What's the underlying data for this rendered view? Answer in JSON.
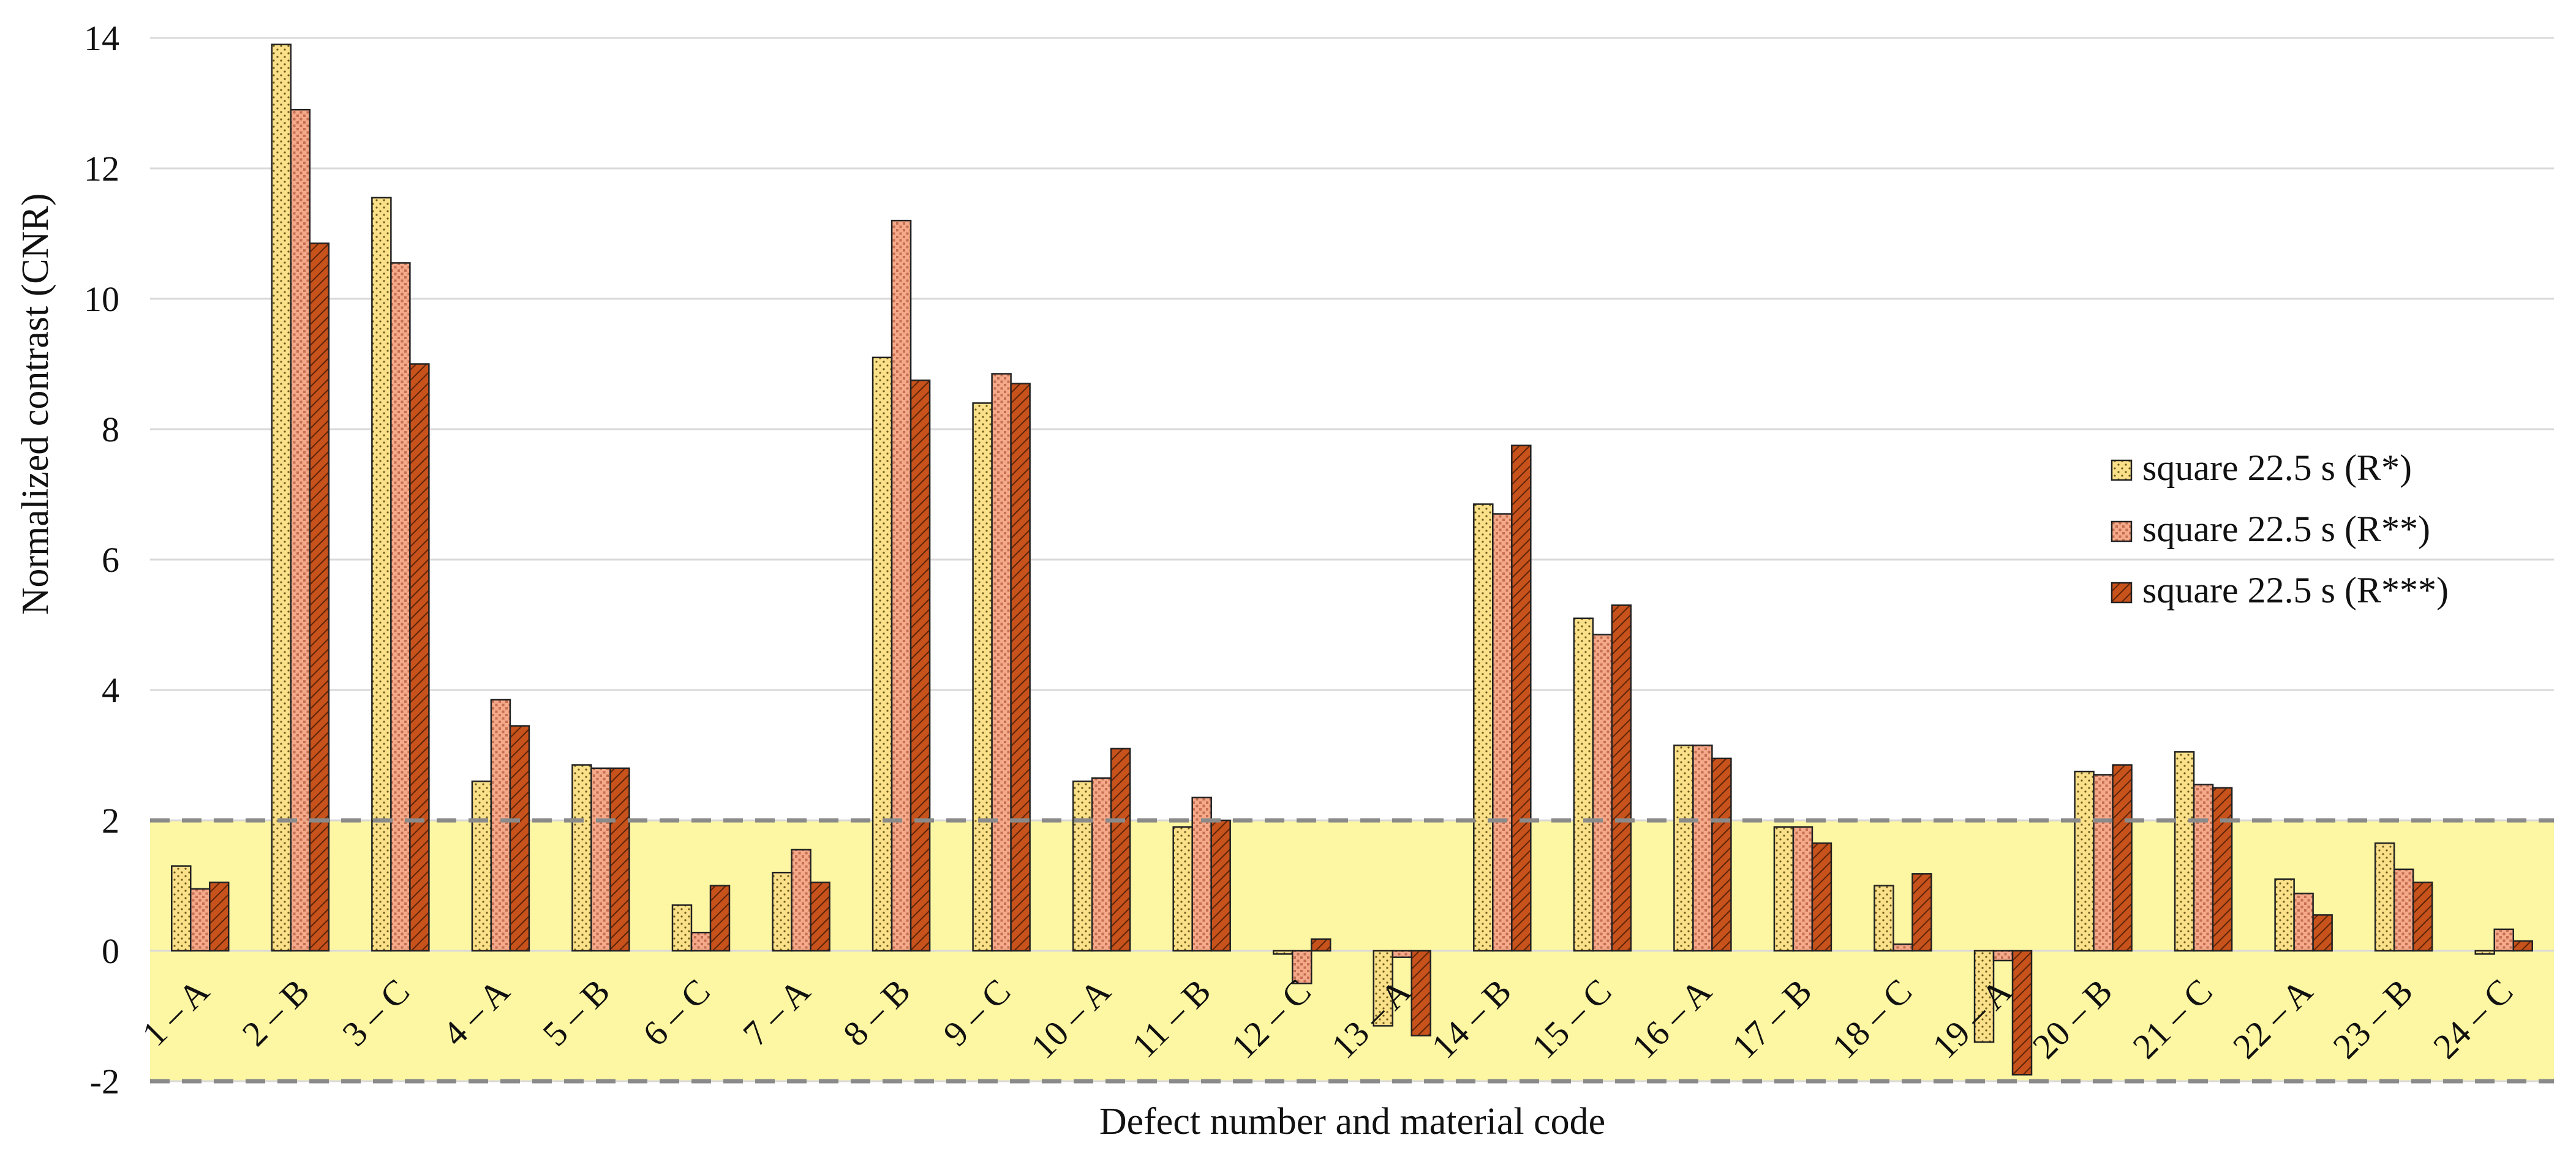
{
  "chart_data": {
    "type": "bar",
    "xlabel": "Defect number and material code",
    "ylabel": "Normalized contrast (CNR)",
    "ylim": [
      -2,
      14
    ],
    "yticks": [
      "-2",
      "0",
      "2",
      "4",
      "6",
      "8",
      "10",
      "12",
      "14"
    ],
    "grid": true,
    "legend_position": "right",
    "categories": [
      "1 – A",
      "2 – B",
      "3 – C",
      "4 – A",
      "5 – B",
      "6 – C",
      "7 – A",
      "8 – B",
      "9 – C",
      "10 – A",
      "11 – B",
      "12 – C",
      "13 – A",
      "14 – B",
      "15 – C",
      "16 – A",
      "17 – B",
      "18 – C",
      "19 – A",
      "20 – B",
      "21 – C",
      "22 – A",
      "23 – B",
      "24 – C"
    ],
    "series": [
      {
        "name": "square 22.5 s (R*)",
        "color": "#fbe08a",
        "pattern": "dots",
        "values": [
          1.3,
          13.9,
          11.55,
          2.6,
          2.85,
          0.7,
          1.2,
          9.1,
          8.4,
          2.6,
          1.9,
          -0.05,
          -1.15,
          6.85,
          5.1,
          3.15,
          1.9,
          1.0,
          -1.4,
          2.75,
          3.05,
          1.1,
          1.65,
          -0.05
        ]
      },
      {
        "name": "square 22.5 s (R**)",
        "color": "#f4a98a",
        "pattern": "grid",
        "values": [
          0.95,
          12.9,
          10.55,
          3.85,
          2.8,
          0.28,
          1.55,
          11.2,
          8.85,
          2.65,
          2.35,
          -0.5,
          -0.1,
          6.7,
          4.85,
          3.15,
          1.9,
          0.1,
          -0.15,
          2.7,
          2.55,
          0.88,
          1.25,
          0.33
        ]
      },
      {
        "name": "square 22.5 s (R***)",
        "color": "#c7521c",
        "pattern": "hatch",
        "values": [
          1.05,
          10.85,
          9.0,
          3.45,
          2.8,
          1.0,
          1.05,
          8.75,
          8.7,
          3.1,
          2.0,
          0.18,
          -1.3,
          7.75,
          5.3,
          2.95,
          1.65,
          1.18,
          -1.9,
          2.85,
          2.5,
          0.55,
          1.05,
          0.15
        ]
      }
    ],
    "threshold_band": {
      "from": -2,
      "to": 2,
      "color": "#fdf6a3"
    }
  }
}
